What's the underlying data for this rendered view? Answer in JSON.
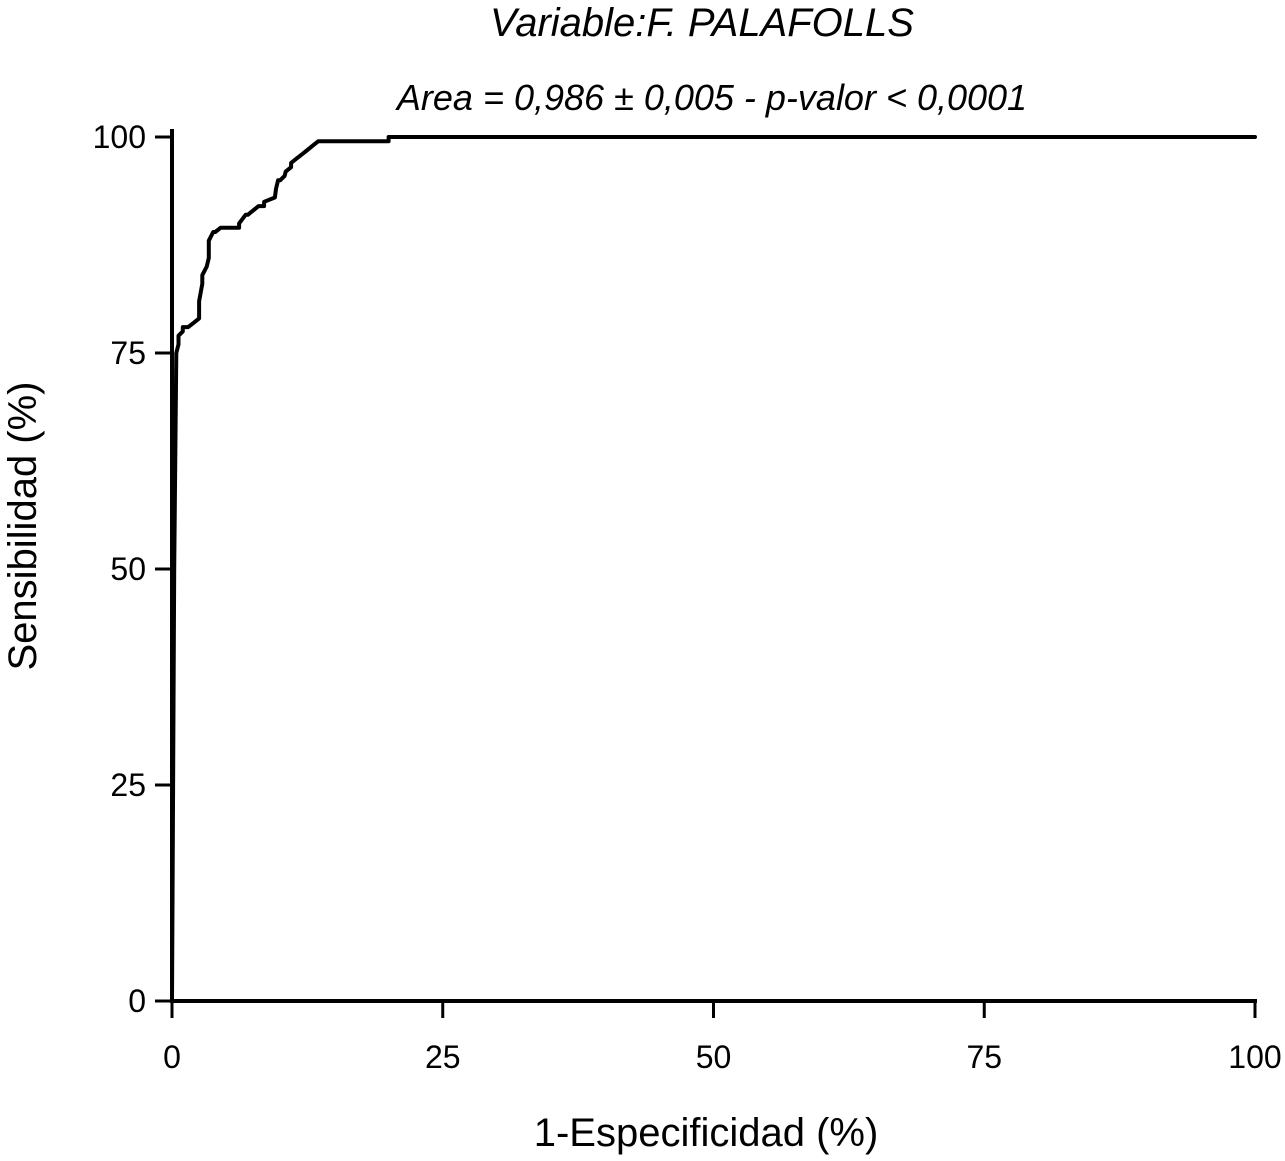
{
  "chart_data": {
    "type": "line",
    "title": "Variable:F. PALAFOLLS",
    "subtitle": "Area = 0,986 ± 0,005 - p-valor < 0,0001",
    "xlabel": "1-Especificidad (%)",
    "ylabel": "Sensibilidad (%)",
    "xlim": [
      0,
      100
    ],
    "ylim": [
      0,
      100
    ],
    "xticks": [
      0,
      25,
      50,
      75,
      100
    ],
    "yticks": [
      0,
      25,
      50,
      75,
      100
    ],
    "xtick_labels": [
      "0",
      "25",
      "50",
      "75",
      "100"
    ],
    "ytick_labels": [
      "0",
      "25",
      "50",
      "75",
      "100"
    ],
    "grid": false,
    "line_color": "#000000",
    "series": [
      {
        "x": [
          0,
          0.1,
          0.2,
          0.4,
          0.6,
          0.6,
          1.0,
          1.0,
          1.5,
          2.0,
          2.0,
          2.5,
          2.5,
          2.8,
          2.8,
          3.2,
          3.4,
          3.4,
          3.8,
          4.0,
          4.5,
          5.0,
          5.5,
          6.0,
          6.2,
          6.2,
          6.8,
          7.0,
          7.5,
          8.0,
          8.5,
          8.5,
          9.5,
          9.6,
          9.8,
          10.0,
          10.4,
          10.5,
          11.0,
          11.0,
          11.5,
          12.0,
          12.5,
          13.0,
          13.5,
          15.0,
          20.0,
          20.0,
          100
        ],
        "y": [
          0,
          25,
          50,
          75,
          76,
          77,
          77.5,
          78,
          78,
          78.5,
          78.5,
          79,
          81,
          83,
          84,
          85,
          86,
          88,
          89,
          89,
          89.5,
          89.5,
          89.5,
          89.5,
          89.5,
          90,
          91,
          91,
          91.5,
          92,
          92,
          92.5,
          93,
          94,
          95,
          95,
          95.5,
          96,
          96.5,
          97,
          97.5,
          98,
          98.5,
          99,
          99.5,
          99.5,
          99.5,
          100,
          100
        ]
      }
    ]
  }
}
